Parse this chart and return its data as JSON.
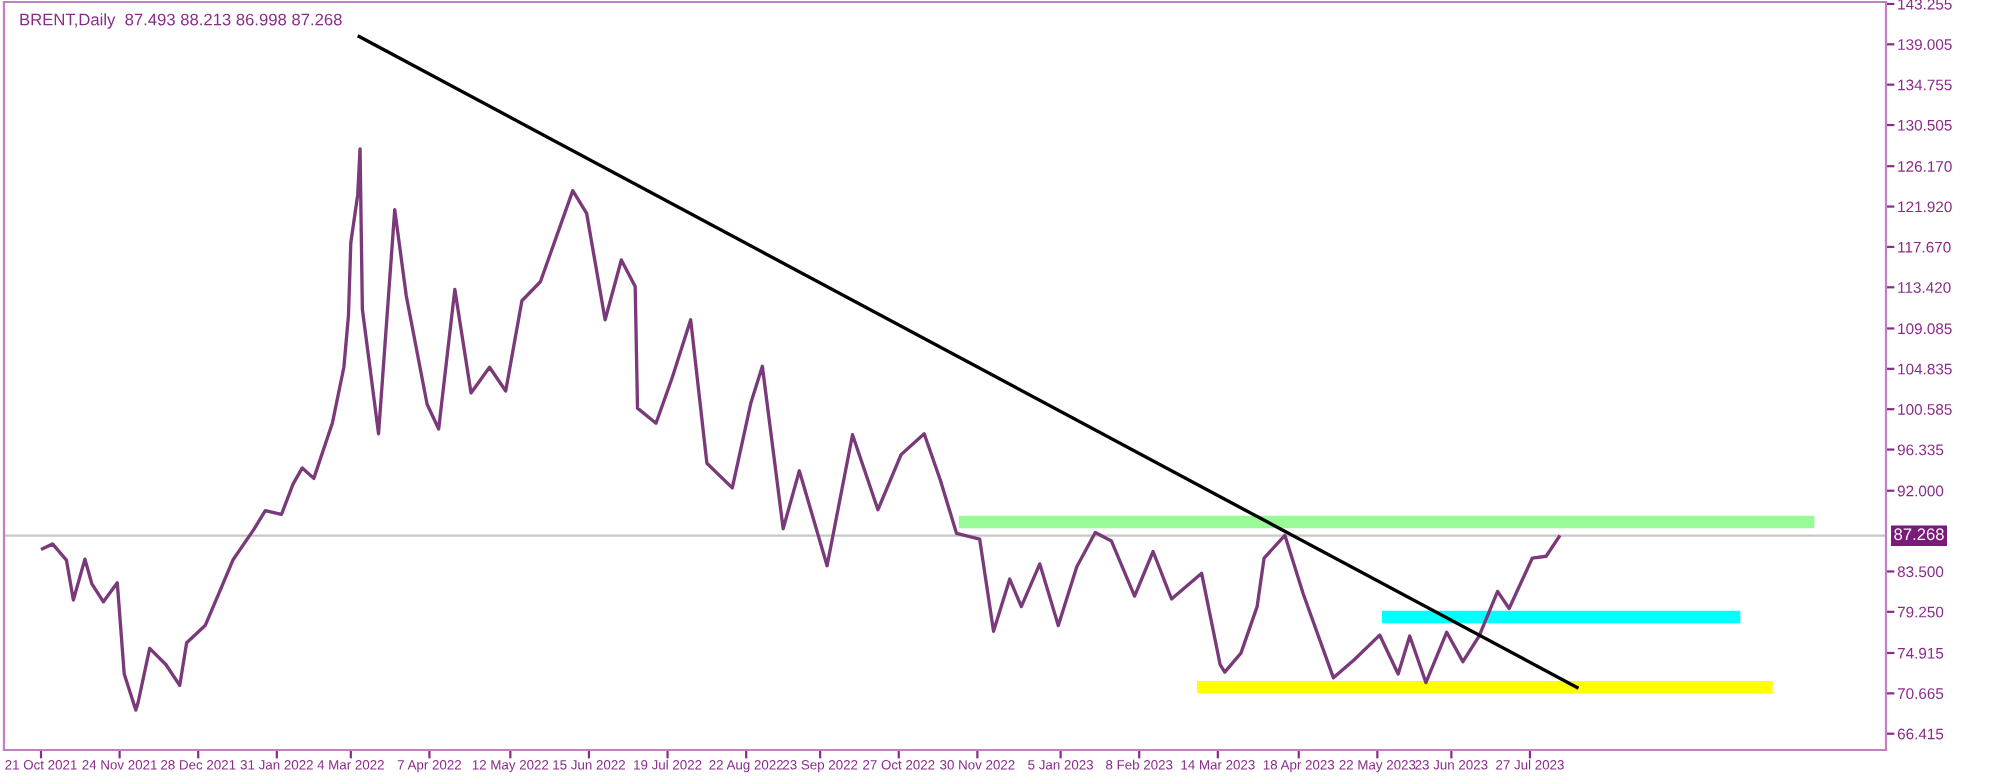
{
  "chart_data": {
    "type": "line",
    "title": "BRENT,Daily  87.493 88.213 86.998 87.268",
    "series": [
      {
        "color": "#7a3a7a",
        "x": [
          "2021-10-21",
          "2021-10-26",
          "2021-11-01",
          "2021-11-04",
          "2021-11-09",
          "2021-11-12",
          "2021-11-17",
          "2021-11-23",
          "2021-11-26",
          "2021-12-01",
          "2021-12-02",
          "2021-12-07",
          "2021-12-14",
          "2021-12-20",
          "2021-12-23",
          "2021-12-31",
          "2022-01-07",
          "2022-01-12",
          "2022-01-21",
          "2022-01-26",
          "2022-02-02",
          "2022-02-07",
          "2022-02-11",
          "2022-02-16",
          "2022-02-24",
          "2022-03-01",
          "2022-03-03",
          "2022-03-04",
          "2022-03-07",
          "2022-03-08",
          "2022-03-09",
          "2022-03-16",
          "2022-03-23",
          "2022-03-28",
          "2022-04-06",
          "2022-04-11",
          "2022-04-18",
          "2022-04-25",
          "2022-05-03",
          "2022-05-10",
          "2022-05-17",
          "2022-05-25",
          "2022-06-08",
          "2022-06-14",
          "2022-06-22",
          "2022-06-29",
          "2022-07-05",
          "2022-07-06",
          "2022-07-14",
          "2022-07-21",
          "2022-07-29",
          "2022-08-05",
          "2022-08-16",
          "2022-08-24",
          "2022-08-29",
          "2022-09-07",
          "2022-09-14",
          "2022-09-26",
          "2022-10-07",
          "2022-10-18",
          "2022-10-28",
          "2022-11-07",
          "2022-11-14",
          "2022-11-21",
          "2022-12-01",
          "2022-12-07",
          "2022-12-14",
          "2022-12-19",
          "2022-12-27",
          "2023-01-04",
          "2023-01-12",
          "2023-01-20",
          "2023-01-27",
          "2023-02-06",
          "2023-02-14",
          "2023-02-22",
          "2023-03-07",
          "2023-03-15",
          "2023-03-17",
          "2023-03-24",
          "2023-03-31",
          "2023-04-03",
          "2023-04-12",
          "2023-04-20",
          "2023-05-03",
          "2023-05-12",
          "2023-05-23",
          "2023-05-31",
          "2023-06-05",
          "2023-06-12",
          "2023-06-21",
          "2023-06-28",
          "2023-07-05",
          "2023-07-13",
          "2023-07-18",
          "2023-07-28",
          "2023-08-03",
          "2023-08-09"
        ],
        "values": [
          85.8,
          86.4,
          84.7,
          80.5,
          84.8,
          82.2,
          80.3,
          82.3,
          72.7,
          68.9,
          69.7,
          75.4,
          73.7,
          71.5,
          76.0,
          77.8,
          81.8,
          84.7,
          87.9,
          89.9,
          89.5,
          92.7,
          94.4,
          93.3,
          99.1,
          105.0,
          110.5,
          118.1,
          123.2,
          128.0,
          111.1,
          98.0,
          121.6,
          112.5,
          101.1,
          98.5,
          113.2,
          102.3,
          105.0,
          102.5,
          112.0,
          114.0,
          123.6,
          121.2,
          110.0,
          116.3,
          113.5,
          100.7,
          99.1,
          103.9,
          110.0,
          94.9,
          92.3,
          101.2,
          105.1,
          88.0,
          94.1,
          84.1,
          97.9,
          90.0,
          95.8,
          98.0,
          93.1,
          87.5,
          86.9,
          77.2,
          82.7,
          79.8,
          84.3,
          77.8,
          84.0,
          87.6,
          86.7,
          80.9,
          85.6,
          80.6,
          83.3,
          73.7,
          72.9,
          74.9,
          79.8,
          84.9,
          87.3,
          81.1,
          72.3,
          74.2,
          76.8,
          72.7,
          76.7,
          71.8,
          77.1,
          74.0,
          76.7,
          81.4,
          79.6,
          84.9,
          85.1,
          87.3
        ]
      },
      {
        "type": "line",
        "color": "#000000",
        "x": [
          "2022-03-07",
          "2023-08-17"
        ],
        "values": [
          139.9,
          71.2
        ]
      },
      {
        "type": "line",
        "color": "#98fb98",
        "x": [
          "2022-11-22",
          "2023-11-27"
        ],
        "values": [
          88.7,
          88.7
        ]
      },
      {
        "type": "line",
        "color": "#00ffff",
        "x": [
          "2023-05-24",
          "2023-10-26"
        ],
        "values": [
          78.7,
          78.7
        ]
      },
      {
        "type": "line",
        "color": "#ffff00",
        "x": [
          "2023-03-05",
          "2023-11-09"
        ],
        "values": [
          71.3,
          71.3
        ]
      }
    ],
    "ref_lines": [
      {
        "axis": "y",
        "value": 87.268,
        "label": "87.268",
        "color": "#c8c8c8"
      }
    ],
    "xlim": [
      "2021-10-05",
      "2023-12-28"
    ],
    "xticks": [
      {
        "value": "2021-10-21",
        "label": "21 Oct 2021"
      },
      {
        "value": "2021-11-24",
        "label": "24 Nov 2021"
      },
      {
        "value": "2021-12-28",
        "label": "28 Dec 2021"
      },
      {
        "value": "2022-01-31",
        "label": "31 Jan 2022"
      },
      {
        "value": "2022-03-04",
        "label": "4 Mar 2022"
      },
      {
        "value": "2022-04-07",
        "label": "7 Apr 2022"
      },
      {
        "value": "2022-05-12",
        "label": "12 May 2022"
      },
      {
        "value": "2022-06-15",
        "label": "15 Jun 2022"
      },
      {
        "value": "2022-07-19",
        "label": "19 Jul 2022"
      },
      {
        "value": "2022-08-22",
        "label": "22 Aug 2022"
      },
      {
        "value": "2022-09-23",
        "label": "23 Sep 2022"
      },
      {
        "value": "2022-10-27",
        "label": "27 Oct 2022"
      },
      {
        "value": "2022-11-30",
        "label": "30 Nov 2022"
      },
      {
        "value": "2023-01-05",
        "label": "5 Jan 2023"
      },
      {
        "value": "2023-02-08",
        "label": "8 Feb 2023"
      },
      {
        "value": "2023-03-14",
        "label": "14 Mar 2023"
      },
      {
        "value": "2023-04-18",
        "label": "18 Apr 2023"
      },
      {
        "value": "2023-05-22",
        "label": "22 May 2023"
      },
      {
        "value": "2023-06-23",
        "label": "23 Jun 2023"
      },
      {
        "value": "2023-07-27",
        "label": "27 Jul 2023"
      }
    ],
    "ylim": [
      64.7,
      143.46
    ],
    "yticks": [
      {
        "value": 143.255,
        "label": "143.255"
      },
      {
        "value": 139.005,
        "label": "139.005"
      },
      {
        "value": 134.755,
        "label": "134.755"
      },
      {
        "value": 130.505,
        "label": "130.505"
      },
      {
        "value": 126.17,
        "label": "126.170"
      },
      {
        "value": 121.92,
        "label": "121.920"
      },
      {
        "value": 117.67,
        "label": "117.670"
      },
      {
        "value": 113.42,
        "label": "113.420"
      },
      {
        "value": 109.085,
        "label": "109.085"
      },
      {
        "value": 104.835,
        "label": "104.835"
      },
      {
        "value": 100.585,
        "label": "100.585"
      },
      {
        "value": 96.335,
        "label": "96.335"
      },
      {
        "value": 92.0,
        "label": "92.000"
      },
      {
        "value": 83.5,
        "label": "83.500"
      },
      {
        "value": 79.25,
        "label": "79.250"
      },
      {
        "value": 74.915,
        "label": "74.915"
      },
      {
        "value": 70.665,
        "label": "70.665"
      },
      {
        "value": 66.415,
        "label": "66.415"
      }
    ],
    "grid": false
  }
}
